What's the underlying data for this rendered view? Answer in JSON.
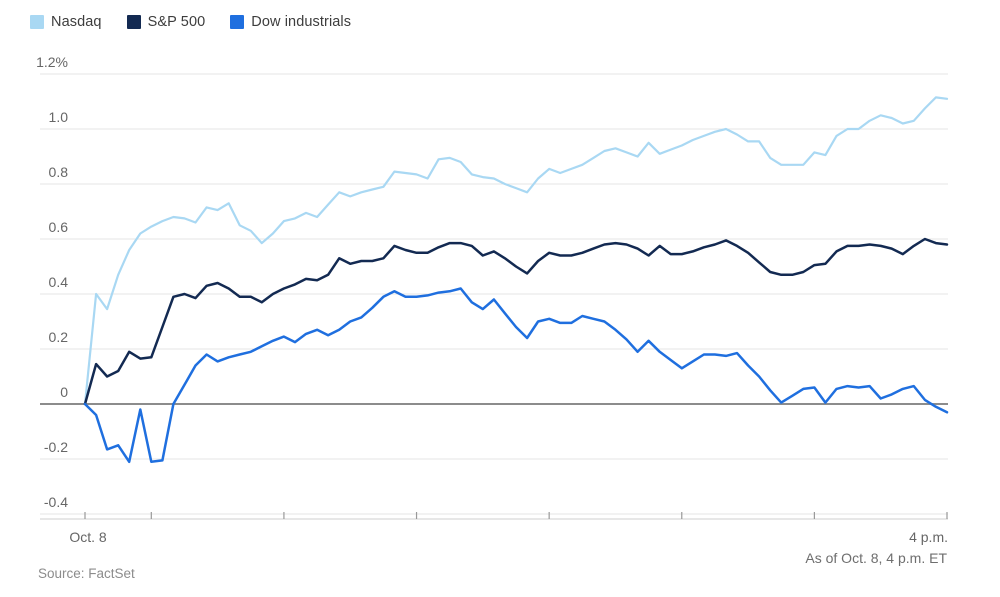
{
  "legend": {
    "items": [
      {
        "label": "Nasdaq",
        "color": "#a9d8f3"
      },
      {
        "label": "S&P 500",
        "color": "#132a52"
      },
      {
        "label": "Dow industrials",
        "color": "#1f6fdf"
      }
    ]
  },
  "chart_data": {
    "type": "line",
    "title": "",
    "x_unit": "minutes since 9:30 a.m. ET, Oct. 8",
    "x": [
      0,
      5,
      10,
      15,
      20,
      25,
      30,
      35,
      40,
      45,
      50,
      55,
      60,
      65,
      70,
      75,
      80,
      85,
      90,
      95,
      100,
      105,
      110,
      115,
      120,
      125,
      130,
      135,
      140,
      145,
      150,
      155,
      160,
      165,
      170,
      175,
      180,
      185,
      190,
      195,
      200,
      205,
      210,
      215,
      220,
      225,
      230,
      235,
      240,
      245,
      250,
      255,
      260,
      265,
      270,
      275,
      280,
      285,
      290,
      295,
      300,
      305,
      310,
      315,
      320,
      325,
      330,
      335,
      340,
      345,
      350,
      355,
      360,
      365,
      370,
      375,
      380,
      385,
      390
    ],
    "series": [
      {
        "name": "Nasdaq",
        "color": "#a9d8f3",
        "width": 2.2,
        "values": [
          0,
          0.4,
          0.345,
          0.47,
          0.56,
          0.62,
          0.645,
          0.665,
          0.68,
          0.675,
          0.66,
          0.715,
          0.705,
          0.73,
          0.65,
          0.63,
          0.585,
          0.62,
          0.665,
          0.675,
          0.695,
          0.68,
          0.725,
          0.77,
          0.755,
          0.77,
          0.78,
          0.79,
          0.845,
          0.84,
          0.835,
          0.82,
          0.89,
          0.895,
          0.88,
          0.835,
          0.825,
          0.82,
          0.8,
          0.785,
          0.77,
          0.82,
          0.855,
          0.84,
          0.855,
          0.87,
          0.895,
          0.92,
          0.93,
          0.915,
          0.9,
          0.95,
          0.91,
          0.925,
          0.94,
          0.96,
          0.975,
          0.99,
          1.0,
          0.98,
          0.955,
          0.955,
          0.895,
          0.87,
          0.87,
          0.87,
          0.915,
          0.905,
          0.975,
          1.0,
          1.0,
          1.03,
          1.05,
          1.04,
          1.02,
          1.03,
          1.075,
          1.115,
          1.11
        ]
      },
      {
        "name": "S&P 500",
        "color": "#132a52",
        "width": 2.5,
        "values": [
          0,
          0.145,
          0.1,
          0.12,
          0.19,
          0.165,
          0.17,
          0.28,
          0.39,
          0.4,
          0.385,
          0.43,
          0.44,
          0.42,
          0.39,
          0.39,
          0.37,
          0.4,
          0.42,
          0.435,
          0.455,
          0.45,
          0.47,
          0.53,
          0.51,
          0.52,
          0.52,
          0.53,
          0.575,
          0.56,
          0.55,
          0.55,
          0.57,
          0.585,
          0.585,
          0.575,
          0.54,
          0.555,
          0.53,
          0.5,
          0.475,
          0.52,
          0.55,
          0.54,
          0.54,
          0.55,
          0.565,
          0.58,
          0.585,
          0.58,
          0.565,
          0.54,
          0.575,
          0.545,
          0.545,
          0.555,
          0.57,
          0.58,
          0.595,
          0.575,
          0.55,
          0.515,
          0.48,
          0.47,
          0.47,
          0.48,
          0.505,
          0.51,
          0.555,
          0.575,
          0.575,
          0.58,
          0.575,
          0.565,
          0.545,
          0.575,
          0.6,
          0.585,
          0.58
        ]
      },
      {
        "name": "Dow industrials",
        "color": "#1f6fdf",
        "width": 2.5,
        "values": [
          0,
          -0.04,
          -0.165,
          -0.15,
          -0.21,
          -0.02,
          -0.21,
          -0.205,
          0.0,
          0.07,
          0.14,
          0.18,
          0.155,
          0.17,
          0.18,
          0.19,
          0.21,
          0.23,
          0.245,
          0.225,
          0.255,
          0.27,
          0.25,
          0.27,
          0.3,
          0.315,
          0.35,
          0.39,
          0.41,
          0.39,
          0.39,
          0.395,
          0.405,
          0.41,
          0.42,
          0.37,
          0.345,
          0.38,
          0.33,
          0.28,
          0.24,
          0.3,
          0.31,
          0.295,
          0.295,
          0.32,
          0.31,
          0.3,
          0.27,
          0.235,
          0.19,
          0.23,
          0.19,
          0.16,
          0.13,
          0.155,
          0.18,
          0.18,
          0.175,
          0.185,
          0.14,
          0.1,
          0.05,
          0.005,
          0.03,
          0.055,
          0.06,
          0.005,
          0.055,
          0.065,
          0.06,
          0.065,
          0.02,
          0.035,
          0.055,
          0.065,
          0.015,
          -0.01,
          -0.03
        ]
      }
    ],
    "y_axis": {
      "ticks": [
        {
          "value": 1.2,
          "label": "1.2%"
        },
        {
          "value": 1.0,
          "label": "1.0"
        },
        {
          "value": 0.8,
          "label": "0.8"
        },
        {
          "value": 0.6,
          "label": "0.6"
        },
        {
          "value": 0.4,
          "label": "0.4"
        },
        {
          "value": 0.2,
          "label": "0.2"
        },
        {
          "value": 0,
          "label": "0"
        },
        {
          "value": -0.2,
          "label": "-0.2"
        },
        {
          "value": -0.4,
          "label": "-0.4"
        }
      ],
      "range": [
        -0.4,
        1.2
      ],
      "grid": true
    },
    "x_axis": {
      "tick_minutes": [
        0,
        30,
        90,
        150,
        210,
        270,
        330,
        390
      ],
      "start_label": "Oct. 8",
      "end_label": "4 p.m."
    },
    "legend_position": "top-left"
  },
  "footer": {
    "as_of": "As of Oct. 8, 4 p.m. ET",
    "source": "Source: FactSet"
  },
  "colors": {
    "background": "#ffffff",
    "grid": "#e6e6e6",
    "zero_line": "#8c8c8c",
    "axis_line": "#cfcfcf",
    "tick": "#999999",
    "axis_text": "#666666",
    "legend_text": "#3d3d3d"
  }
}
